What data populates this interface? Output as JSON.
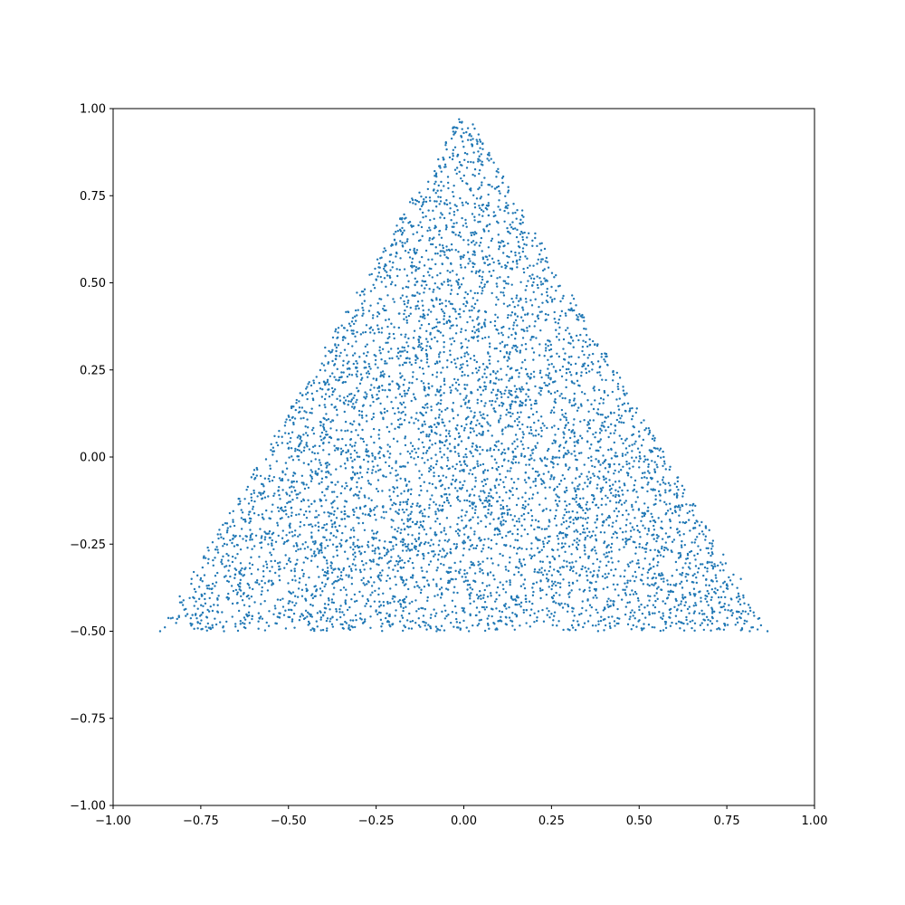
{
  "chart_data": {
    "type": "scatter",
    "title": "",
    "xlabel": "",
    "ylabel": "",
    "xlim": [
      -1.0,
      1.0
    ],
    "ylim": [
      -1.0,
      1.0
    ],
    "grid": false,
    "marker_color": "#1f77b4",
    "x_tick_labels": [
      "−1.00",
      "−0.75",
      "−0.50",
      "−0.25",
      "0.00",
      "0.25",
      "0.50",
      "0.75",
      "1.00"
    ],
    "y_tick_labels": [
      "−1.00",
      "−0.75",
      "−0.50",
      "−0.25",
      "0.00",
      "0.25",
      "0.50",
      "0.75",
      "1.00"
    ],
    "x_ticks": [
      -1.0,
      -0.75,
      -0.5,
      -0.25,
      0.0,
      0.25,
      0.5,
      0.75,
      1.0
    ],
    "y_ticks": [
      -1.0,
      -0.75,
      -0.5,
      -0.25,
      0.0,
      0.25,
      0.5,
      0.75,
      1.0
    ],
    "region": {
      "shape": "triangle",
      "vertices": [
        [
          0.0,
          1.0
        ],
        [
          -0.866,
          -0.5
        ],
        [
          0.866,
          -0.5
        ]
      ],
      "approx_point_count": 6000
    },
    "points": [
      [
        0.0,
        0.93
      ],
      [
        0.02,
        0.91
      ],
      [
        -0.04,
        0.86
      ],
      [
        0.05,
        0.84
      ],
      [
        -0.08,
        0.79
      ],
      [
        0.09,
        0.77
      ],
      [
        -0.12,
        0.72
      ],
      [
        0.14,
        0.7
      ],
      [
        -0.17,
        0.65
      ],
      [
        0.18,
        0.63
      ],
      [
        -0.21,
        0.58
      ],
      [
        0.22,
        0.56
      ],
      [
        -0.25,
        0.51
      ],
      [
        0.27,
        0.49
      ],
      [
        -0.29,
        0.44
      ],
      [
        0.31,
        0.42
      ],
      [
        -0.34,
        0.37
      ],
      [
        0.35,
        0.35
      ],
      [
        -0.38,
        0.3
      ],
      [
        0.4,
        0.28
      ],
      [
        -0.42,
        0.23
      ],
      [
        0.44,
        0.21
      ],
      [
        -0.47,
        0.16
      ],
      [
        0.48,
        0.14
      ],
      [
        -0.51,
        0.09
      ],
      [
        0.53,
        0.07
      ],
      [
        -0.55,
        0.02
      ],
      [
        0.57,
        0.0
      ],
      [
        -0.6,
        -0.05
      ],
      [
        0.61,
        -0.07
      ],
      [
        -0.64,
        -0.12
      ],
      [
        0.66,
        -0.14
      ],
      [
        -0.68,
        -0.19
      ],
      [
        0.7,
        -0.21
      ],
      [
        -0.73,
        -0.26
      ],
      [
        0.74,
        -0.28
      ],
      [
        -0.77,
        -0.33
      ],
      [
        0.79,
        -0.35
      ],
      [
        -0.81,
        -0.4
      ],
      [
        0.8,
        -0.42
      ],
      [
        -0.866,
        -0.5
      ],
      [
        0.866,
        -0.5
      ],
      [
        0.0,
        -0.47
      ],
      [
        0.25,
        -0.45
      ],
      [
        -0.25,
        -0.44
      ],
      [
        0.5,
        -0.43
      ],
      [
        -0.5,
        -0.42
      ],
      [
        0.1,
        0.1
      ],
      [
        -0.1,
        0.2
      ],
      [
        0.2,
        0.3
      ],
      [
        -0.2,
        -0.1
      ],
      [
        0.3,
        -0.2
      ],
      [
        0.0,
        0.0
      ],
      [
        0.05,
        0.5
      ]
    ]
  }
}
